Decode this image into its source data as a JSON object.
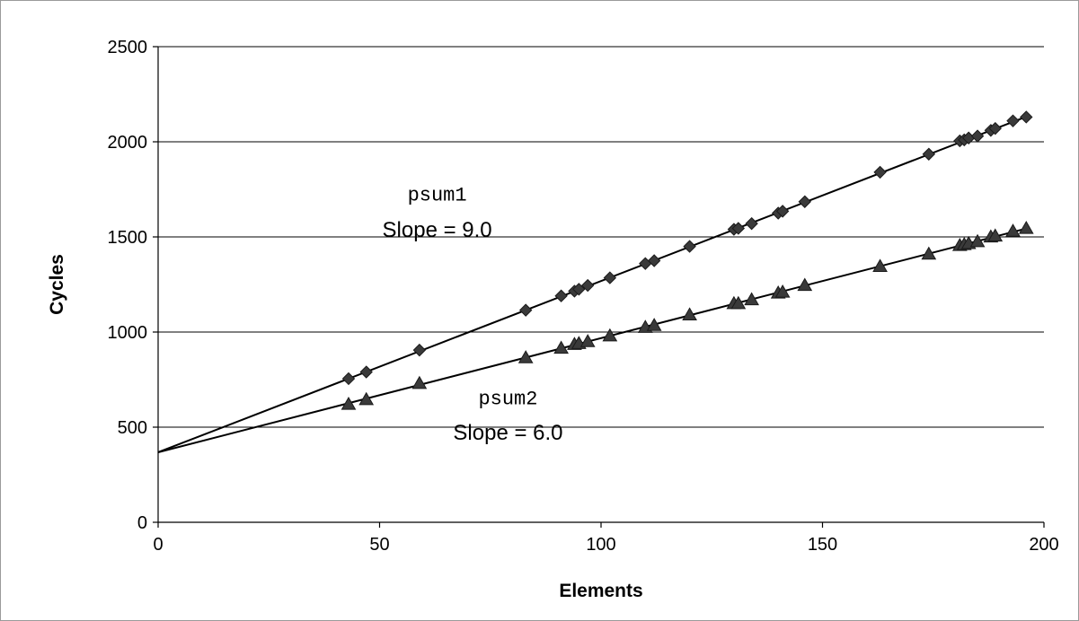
{
  "chart_data": {
    "type": "scatter",
    "title": "",
    "xlabel": "Elements",
    "ylabel": "Cycles",
    "xlim": [
      0,
      200
    ],
    "ylim": [
      0,
      2500
    ],
    "xticks": [
      0,
      50,
      100,
      150,
      200
    ],
    "yticks": [
      0,
      500,
      1000,
      1500,
      2000,
      2500
    ],
    "grid": "horizontal",
    "legend": "none",
    "series": [
      {
        "marker": "diamond",
        "color": "#000000",
        "x": [
          43,
          47,
          59,
          83,
          91,
          94,
          95,
          97,
          102,
          110,
          112,
          120,
          130,
          131,
          134,
          140,
          141,
          146,
          163,
          174,
          181,
          182,
          183,
          185,
          188,
          189,
          193,
          196
        ],
        "y": [
          755,
          790,
          905,
          1115,
          1190,
          1215,
          1225,
          1245,
          1285,
          1360,
          1375,
          1450,
          1540,
          1545,
          1570,
          1625,
          1635,
          1685,
          1840,
          1935,
          2005,
          2010,
          2020,
          2030,
          2060,
          2070,
          2110,
          2130
        ],
        "fit": {
          "intercept": 368,
          "slope": 9.0
        }
      },
      {
        "marker": "triangle",
        "color": "#000000",
        "x": [
          43,
          47,
          59,
          83,
          91,
          94,
          95,
          97,
          102,
          110,
          112,
          120,
          130,
          131,
          134,
          140,
          141,
          146,
          163,
          174,
          181,
          182,
          183,
          185,
          188,
          189,
          193,
          196
        ],
        "y": [
          620,
          645,
          730,
          865,
          915,
          935,
          940,
          950,
          980,
          1025,
          1035,
          1090,
          1150,
          1150,
          1170,
          1205,
          1210,
          1245,
          1345,
          1410,
          1455,
          1460,
          1465,
          1475,
          1500,
          1505,
          1530,
          1545
        ],
        "fit": {
          "intercept": 368,
          "slope": 6.0
        }
      }
    ],
    "annotations": [
      {
        "text": "psum1",
        "font": "mono",
        "x": 63,
        "y": 1690
      },
      {
        "text": "Slope = 9.0",
        "font": "sans",
        "x": 63,
        "y": 1500
      },
      {
        "text": "psum2",
        "font": "mono",
        "x": 79,
        "y": 620
      },
      {
        "text": "Slope = 6.0",
        "font": "sans",
        "x": 79,
        "y": 435
      }
    ]
  }
}
